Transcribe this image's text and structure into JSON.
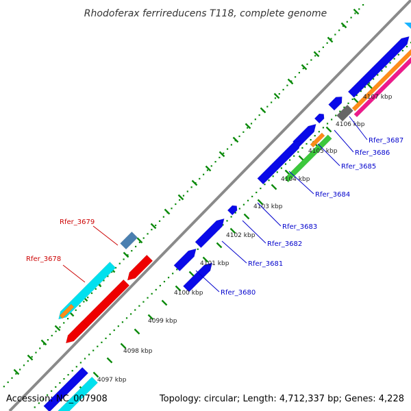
{
  "title": "Rhodoferax ferrireducens T118, complete genome",
  "accession": "Accession: NC_007908",
  "topology": "Topology: circular; Length: 4,712,337 bp; Genes: 4,228",
  "kbp_ticks": [
    "4097 kbp",
    "4098 kbp",
    "4099 kbp",
    "4100 kbp",
    "4101 kbp",
    "4102 kbp",
    "4103 kbp",
    "4104 kbp",
    "4105 kbp",
    "4106 kbp",
    "4107 kbp"
  ],
  "genes_forward": [
    {
      "name": "Rfer_3680",
      "color": "#0000ee"
    },
    {
      "name": "Rfer_3681",
      "color": "#0000ee"
    },
    {
      "name": "Rfer_3682",
      "color": "#0000ee"
    },
    {
      "name": "Rfer_3683",
      "color": "#0000ee"
    },
    {
      "name": "Rfer_3684",
      "color": "#0000ee"
    },
    {
      "name": "Rfer_3685",
      "color": "#0000ee"
    },
    {
      "name": "Rfer_3686",
      "color": "#0000ee"
    },
    {
      "name": "Rfer_3687",
      "color": "#0000ee"
    }
  ],
  "genes_reverse": [
    {
      "name": "Rfer_3678",
      "color": "#cc0000"
    },
    {
      "name": "Rfer_3679",
      "color": "#cc0000"
    }
  ],
  "colors": {
    "backbone": "#8a8a8a",
    "tick_dot": "#0a8a0a",
    "blue": "#0a0ae8",
    "red": "#ee0000",
    "cyan": "#00e0ee",
    "steel": "#4a7fb0",
    "green": "#3cc83c",
    "orange": "#ff8c1a",
    "magenta": "#ee1a8c",
    "gray": "#666666",
    "label_blue": "#0000cc",
    "label_red": "#cc0000"
  }
}
